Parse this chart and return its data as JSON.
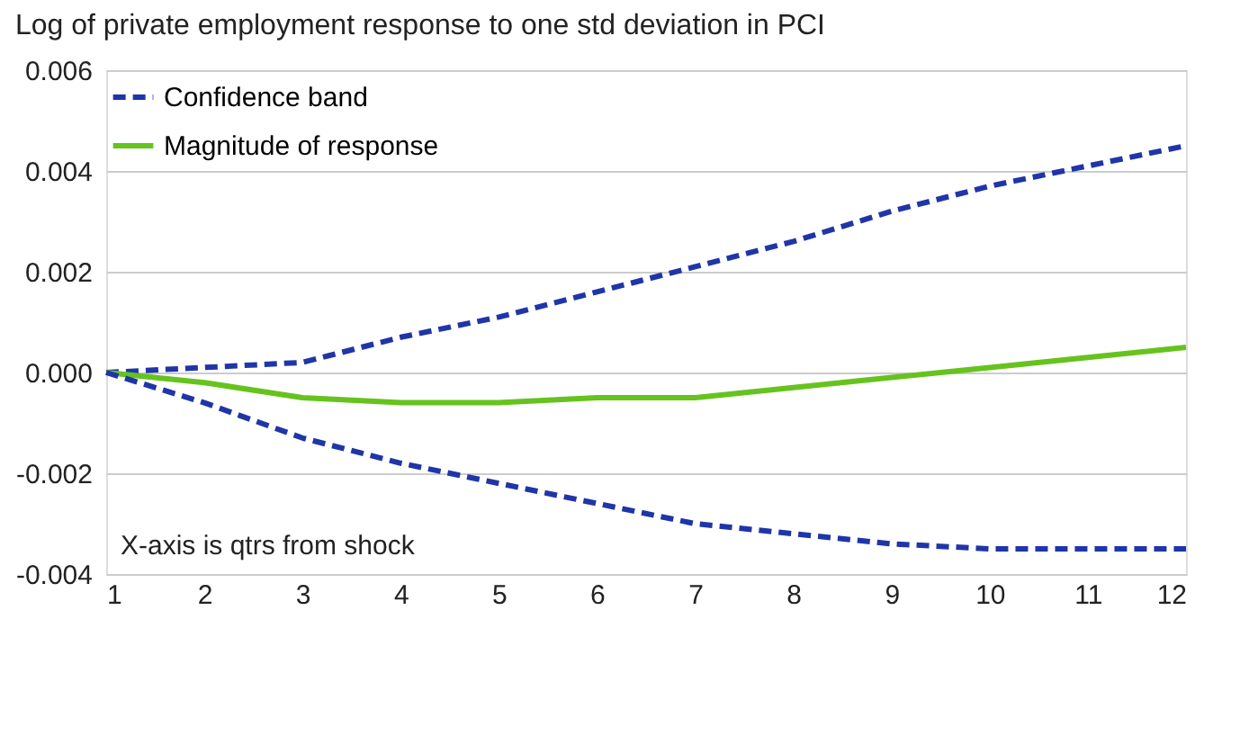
{
  "chart_data": {
    "type": "line",
    "title": "Log of private employment response to one std deviation in PCI",
    "x": [
      1,
      2,
      3,
      4,
      5,
      6,
      7,
      8,
      9,
      10,
      11,
      12
    ],
    "series": [
      {
        "name": "Confidence band",
        "color": "#1f35a8",
        "line_style": "dashed",
        "values": [
          0,
          0.0001,
          0.0002,
          0.0007,
          0.0011,
          0.0016,
          0.0021,
          0.0026,
          0.0032,
          0.0037,
          0.0041,
          0.0045
        ]
      },
      {
        "name": "Magnitude of response",
        "color": "#66c31e",
        "line_style": "solid",
        "values": [
          0,
          -0.0002,
          -0.0005,
          -0.0006,
          -0.0006,
          -0.0005,
          -0.0005,
          -0.0003,
          -0.0001,
          0.0001,
          0.0003,
          0.0005
        ]
      },
      {
        "color": "#1f35a8",
        "line_style": "dashed",
        "values": [
          0,
          -0.0006,
          -0.0013,
          -0.0018,
          -0.0022,
          -0.0026,
          -0.003,
          -0.0032,
          -0.0034,
          -0.0035,
          -0.0035,
          -0.0035
        ]
      }
    ],
    "xlim": [
      1,
      12
    ],
    "xticks": [
      1,
      2,
      3,
      4,
      5,
      6,
      7,
      8,
      9,
      10,
      11,
      12
    ],
    "ylim": [
      -0.004,
      0.006
    ],
    "yticks": [
      -0.004,
      -0.002,
      {
        "value": 0,
        "label": "0.000"
      },
      0.002,
      0.004,
      0.006
    ],
    "grid": "y",
    "legend": "top left",
    "marker": "none",
    "annotations": [
      "X-axis is qtrs from shock"
    ]
  }
}
